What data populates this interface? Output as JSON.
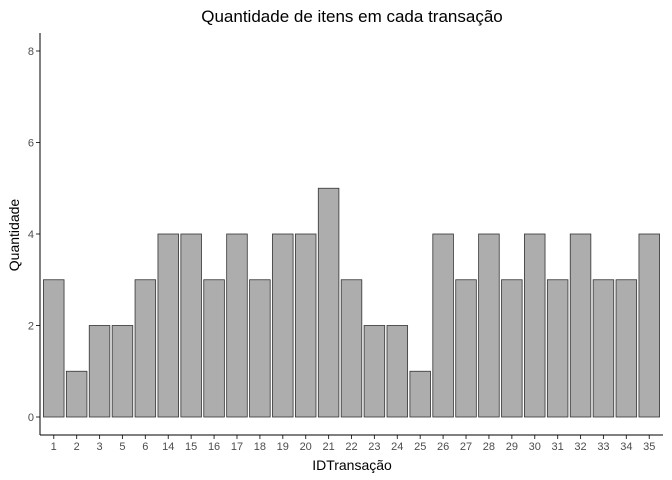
{
  "chart_data": {
    "type": "bar",
    "title": "Quantidade de itens em cada transação",
    "xlabel": "IDTransação",
    "ylabel": "Quantidade",
    "categories": [
      "1",
      "2",
      "3",
      "5",
      "6",
      "14",
      "15",
      "16",
      "17",
      "18",
      "19",
      "20",
      "21",
      "22",
      "23",
      "24",
      "25",
      "26",
      "27",
      "28",
      "29",
      "30",
      "31",
      "32",
      "33",
      "34",
      "35"
    ],
    "values": [
      3,
      1,
      2,
      2,
      3,
      4,
      4,
      3,
      4,
      3,
      4,
      4,
      5,
      3,
      2,
      2,
      1,
      4,
      3,
      4,
      3,
      4,
      3,
      4,
      3,
      3,
      4
    ],
    "ylim": [
      0,
      8
    ],
    "yticks": [
      0,
      2,
      4,
      6,
      8
    ],
    "grid": false,
    "colors": {
      "bar_fill": "#adadad",
      "bar_stroke": "#333333"
    }
  }
}
